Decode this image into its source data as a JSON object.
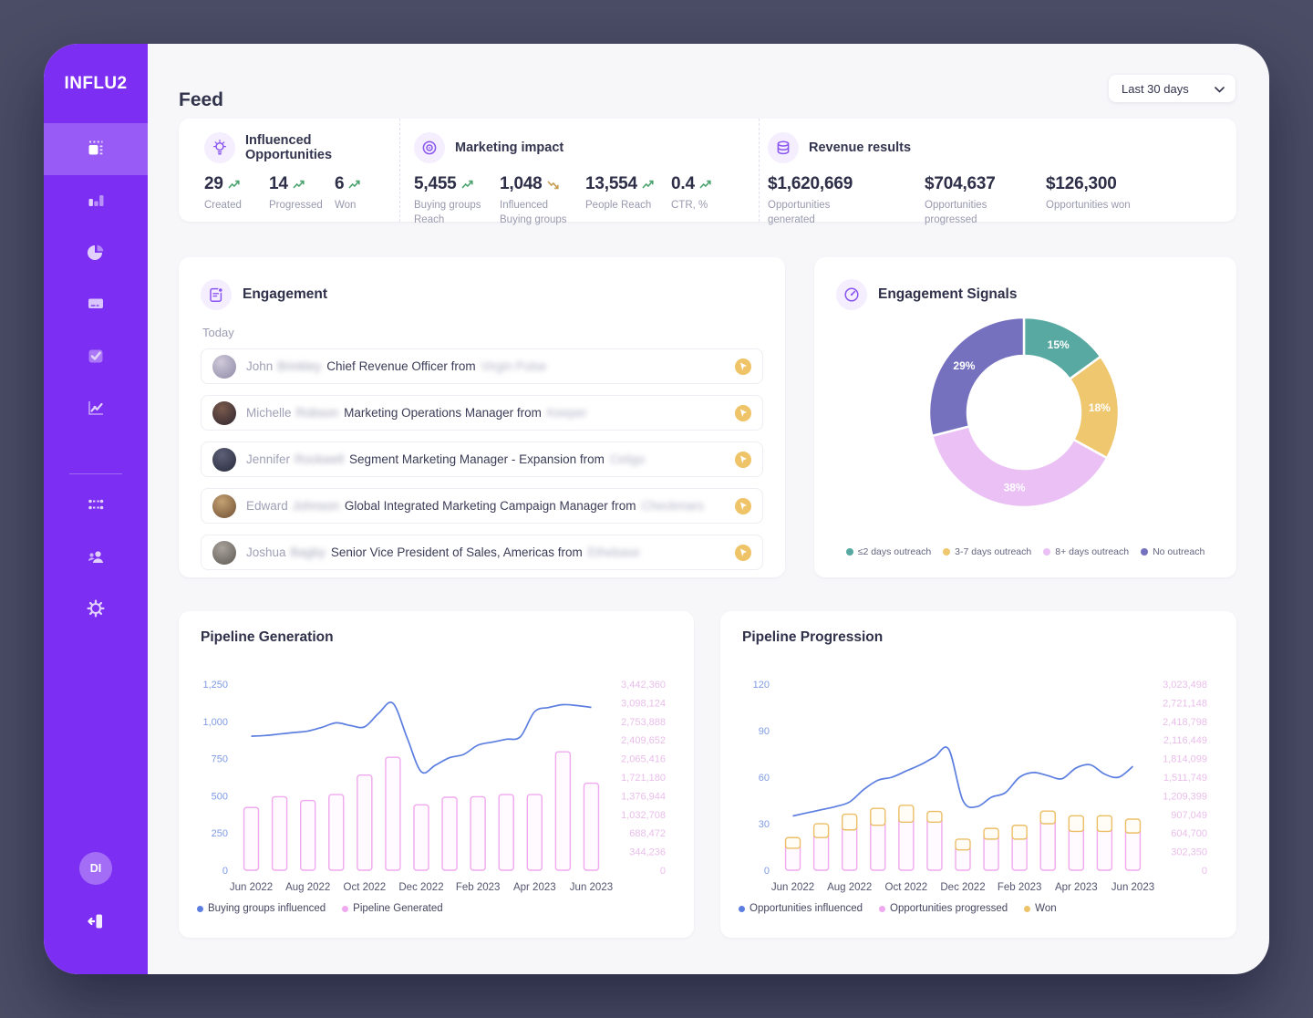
{
  "app": {
    "logo": "INFLU2"
  },
  "header": {
    "title": "Feed",
    "date_filter": "Last 30 days"
  },
  "sidebar": {
    "items_top": [
      "feed-icon",
      "bar-chart-icon",
      "pie-chart-icon",
      "billboard-icon",
      "checkbox-icon",
      "trend-line-icon"
    ],
    "items_bottom": [
      "flow-icon",
      "users-icon",
      "gear-icon"
    ],
    "active_item": "feed-icon",
    "user_initials": "DI"
  },
  "stats": {
    "influenced_opportunities": {
      "title": "Influenced Opportunities",
      "icon": "lightbulb-icon",
      "metrics": [
        {
          "value": "29",
          "label": "Created",
          "trend": "up"
        },
        {
          "value": "14",
          "label": "Progressed",
          "trend": "up"
        },
        {
          "value": "6",
          "label": "Won",
          "trend": "up"
        }
      ]
    },
    "marketing_impact": {
      "title": "Marketing impact",
      "icon": "target-icon",
      "metrics": [
        {
          "value": "5,455",
          "label": "Buying groups Reach",
          "trend": "up"
        },
        {
          "value": "1,048",
          "label": "Influenced Buying groups",
          "trend": "down"
        },
        {
          "value": "13,554",
          "label": "People Reach",
          "trend": "up"
        },
        {
          "value": "0.4",
          "label": "CTR, %",
          "trend": "up"
        }
      ]
    },
    "revenue_results": {
      "title": "Revenue results",
      "icon": "coins-icon",
      "metrics": [
        {
          "value": "$1,620,669",
          "label": "Opportunities generated"
        },
        {
          "value": "$704,637",
          "label": "Opportunities progressed"
        },
        {
          "value": "$126,300",
          "label": "Opportunities won"
        }
      ]
    }
  },
  "engagement": {
    "title": "Engagement",
    "icon": "document-badge-icon",
    "group_label": "Today",
    "rows": [
      {
        "first_name": "John",
        "last_name": "Brinkley",
        "role": "Chief Revenue Officer from",
        "company": "Virgin Pulse"
      },
      {
        "first_name": "Michelle",
        "last_name": "Robson",
        "role": "Marketing Operations Manager from",
        "company": "Keeper"
      },
      {
        "first_name": "Jennifer",
        "last_name": "Rockwell",
        "role": "Segment Marketing Manager - Expansion from",
        "company": "Celigo"
      },
      {
        "first_name": "Edward",
        "last_name": "Johnson",
        "role": "Global Integrated Marketing Campaign Manager from",
        "company": "Checkmars"
      },
      {
        "first_name": "Joshua",
        "last_name": "Bagby",
        "role": "Senior Vice President of Sales, Americas from",
        "company": "Ethebase"
      }
    ],
    "row_badge_icon": "click-cursor-icon"
  },
  "chart_data": [
    {
      "id": "engagement_signals",
      "type": "pie",
      "title": "Engagement Signals",
      "icon": "gauge-icon",
      "slices": [
        {
          "label": "≤2 days outreach",
          "value": 15,
          "pct": "15%",
          "color": "#57A9A1"
        },
        {
          "label": "3-7 days outreach",
          "value": 18,
          "pct": "18%",
          "color": "#EFC76F"
        },
        {
          "label": "8+ days outreach",
          "value": 38,
          "pct": "38%",
          "color": "#EAC0F5"
        },
        {
          "label": "No outreach",
          "value": 29,
          "pct": "29%",
          "color": "#7571BF"
        }
      ],
      "legend_position": "bottom"
    },
    {
      "id": "pipeline_generation",
      "type": "bar",
      "title": "Pipeline Generation",
      "left_ticks": [
        "0",
        "250",
        "500",
        "750",
        "1,000",
        "1,250"
      ],
      "line_max": 1250,
      "right_ticks": [
        "0",
        "344,236",
        "688,472",
        "1,032,708",
        "1,376,944",
        "1,721,180",
        "2,065,416",
        "2,409,652",
        "2,753,888",
        "3,098,124",
        "3,442,360"
      ],
      "bars_max": 3442360,
      "x_labels": [
        "Jun 2022",
        "Aug 2022",
        "Oct 2022",
        "Dec 2022",
        "Feb 2023",
        "Apr 2023",
        "Jun 2023"
      ],
      "bars": [
        1160000,
        1360000,
        1290000,
        1400000,
        1760000,
        2090000,
        1210000,
        1350000,
        1360000,
        1400000,
        1400000,
        2190000,
        1610000
      ],
      "line": [
        900,
        905,
        915,
        925,
        935,
        960,
        990,
        972,
        963,
        1055,
        1122,
        890,
        662,
        706,
        756,
        778,
        840,
        860,
        880,
        897,
        1065,
        1093,
        1112,
        1106,
        1094
      ],
      "legend": [
        {
          "label": "Buying groups influenced",
          "color": "#5B7EE0"
        },
        {
          "label": "Pipeline Generated",
          "color": "#EFA9F0"
        }
      ],
      "bar_color": "#F0A9EE",
      "bar_fill": "#FEFAFF",
      "line_color": "#5B7EE0",
      "axis_left_color": "#7F9BE4",
      "axis_right_color": "#E9BEEA"
    },
    {
      "id": "pipeline_progression",
      "type": "bar",
      "title": "Pipeline Progression",
      "left_ticks": [
        "0",
        "30",
        "60",
        "90",
        "120"
      ],
      "line_max": 120,
      "right_ticks": [
        "0",
        "302,350",
        "604,700",
        "907,049",
        "1,209,399",
        "1,511,749",
        "1,814,099",
        "2,116,449",
        "2,418,798",
        "2,721,148",
        "3,023,498"
      ],
      "bars_max": 3023498,
      "x_labels": [
        "Jun 2022",
        "Aug 2022",
        "Oct 2022",
        "Dec 2022",
        "Feb 2023",
        "Apr 2023",
        "Jun 2023"
      ],
      "bars": [
        {
          "progressed": 430000,
          "won": 100000
        },
        {
          "progressed": 605000,
          "won": 150000
        },
        {
          "progressed": 730000,
          "won": 180000
        },
        {
          "progressed": 805000,
          "won": 200000
        },
        {
          "progressed": 855000,
          "won": 200000
        },
        {
          "progressed": 855000,
          "won": 100000
        },
        {
          "progressed": 405000,
          "won": 100000
        },
        {
          "progressed": 580000,
          "won": 100000
        },
        {
          "progressed": 580000,
          "won": 150000
        },
        {
          "progressed": 830000,
          "won": 130000
        },
        {
          "progressed": 705000,
          "won": 180000
        },
        {
          "progressed": 705000,
          "won": 180000
        },
        {
          "progressed": 680000,
          "won": 150000
        }
      ],
      "line": [
        35,
        37,
        39,
        41,
        44,
        52,
        58,
        60,
        64,
        68,
        73,
        78,
        45,
        41,
        47,
        50,
        60,
        63,
        61,
        59,
        66,
        68,
        62,
        60,
        67
      ],
      "legend": [
        {
          "label": "Opportunities influenced",
          "color": "#5B7EE0"
        },
        {
          "label": "Opportunities progressed",
          "color": "#EFA9F0"
        },
        {
          "label": "Won",
          "color": "#EDC36A"
        }
      ],
      "bar_color": "#F0A9EE",
      "bar_fill": "#FEFAFF",
      "won_color": "#EBBE66",
      "won_fill": "#FFFDF6",
      "line_color": "#5B7EE0",
      "axis_left_color": "#7F9BE4",
      "axis_right_color": "#E9BEEA"
    }
  ],
  "colors": {
    "sidebar_purple": "#7C2EF2",
    "accent_purple": "#8A55F0",
    "trend_up_green": "#4BA36F",
    "trend_down_amber": "#C59A52",
    "badge_yellow": "#EFC468"
  }
}
